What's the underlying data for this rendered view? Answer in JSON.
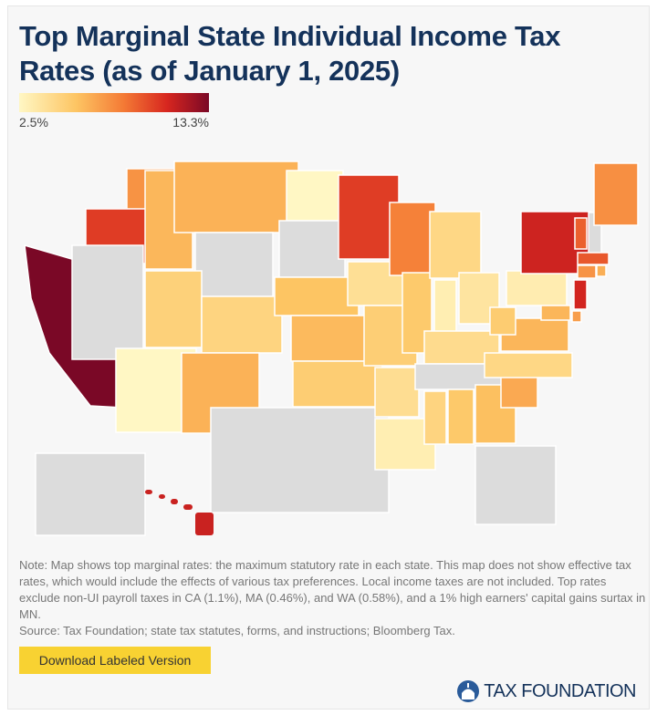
{
  "title": "Top Marginal State Individual Income Tax Rates (as of January 1, 2025)",
  "legend": {
    "min_label": "2.5%",
    "max_label": "13.3%",
    "min": 2.5,
    "max": 13.3,
    "colors": [
      "#fff7c4",
      "#fdc563",
      "#f47a35",
      "#d7261f",
      "#7a0826"
    ],
    "no_tax_color": "#dcdcdc"
  },
  "map_data": {
    "type": "choropleth",
    "unit": "percent",
    "states": {
      "WA": 7,
      "OR": 9.9,
      "CA": 13.3,
      "NV": 0,
      "ID": 5.695,
      "MT": 5.9,
      "WY": 0,
      "UT": 4.55,
      "CO": 4.4,
      "AZ": 2.5,
      "NM": 5.9,
      "ND": 2.5,
      "SD": 0,
      "NE": 5.2,
      "KS": 5.58,
      "OK": 4.75,
      "TX": 0,
      "MN": 9.85,
      "IA": 3.8,
      "MO": 4.7,
      "AR": 3.9,
      "LA": 3.0,
      "WI": 7.65,
      "IL": 4.95,
      "MI": 4.25,
      "IN": 3.0,
      "OH": 3.5,
      "KY": 4.0,
      "TN": 0,
      "MS": 4.4,
      "AL": 5.0,
      "GA": 5.39,
      "FL": 0,
      "SC": 6.2,
      "NC": 4.25,
      "VA": 5.75,
      "WV": 4.82,
      "PA": 3.07,
      "NY": 10.9,
      "VT": 8.75,
      "NH": 0,
      "ME": 7.15,
      "MA": 9.0,
      "CT": 6.99,
      "RI": 5.99,
      "NJ": 10.75,
      "DE": 6.6,
      "MD": 5.75,
      "AK": 0,
      "HI": 11.0
    }
  },
  "note": "Note: Map shows top marginal rates: the maximum statutory rate in each state. This map does not show effective tax rates, which would include the effects of various tax preferences. Local income taxes are not included. Top rates exclude non-UI payroll taxes in CA (1.1%), MA (0.46%), and WA (0.58%), and a 1% high earners' capital gains surtax in MN.",
  "source": "Source: Tax Foundation; state tax statutes, forms, and instructions; Bloomberg Tax.",
  "download_button": "Download Labeled Version",
  "logo_text": "TAX FOUNDATION"
}
